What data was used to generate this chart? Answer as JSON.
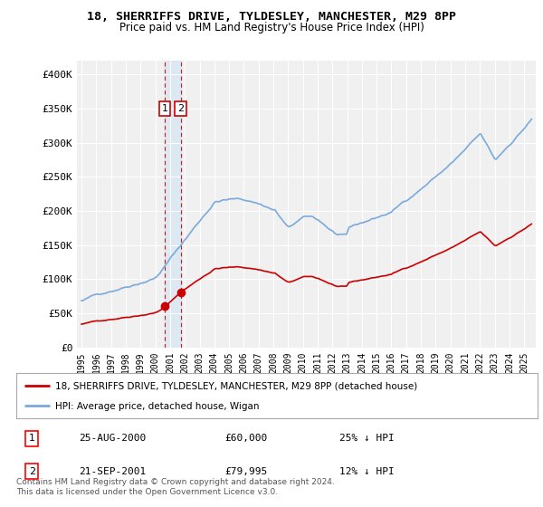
{
  "title": "18, SHERRIFFS DRIVE, TYLDESLEY, MANCHESTER, M29 8PP",
  "subtitle": "Price paid vs. HM Land Registry's House Price Index (HPI)",
  "property_color": "#cc0000",
  "hpi_color": "#7aaadd",
  "transaction1_date": "25-AUG-2000",
  "transaction1_price": "£60,000",
  "transaction1_hpi": "25% ↓ HPI",
  "transaction2_date": "21-SEP-2001",
  "transaction2_price": "£79,995",
  "transaction2_hpi": "12% ↓ HPI",
  "legend_label1": "18, SHERRIFFS DRIVE, TYLDESLEY, MANCHESTER, M29 8PP (detached house)",
  "legend_label2": "HPI: Average price, detached house, Wigan",
  "footer": "Contains HM Land Registry data © Crown copyright and database right 2024.\nThis data is licensed under the Open Government Licence v3.0.",
  "sale1_year": 2000.646,
  "sale1_price": 60000,
  "sale2_year": 2001.722,
  "sale2_price": 79995,
  "ylim": [
    0,
    420000
  ],
  "yticks": [
    0,
    50000,
    100000,
    150000,
    200000,
    250000,
    300000,
    350000,
    400000
  ],
  "ytick_labels": [
    "£0",
    "£50K",
    "£100K",
    "£150K",
    "£200K",
    "£250K",
    "£300K",
    "£350K",
    "£400K"
  ],
  "background_color": "#ffffff",
  "plot_bg_color": "#f0f0f0"
}
